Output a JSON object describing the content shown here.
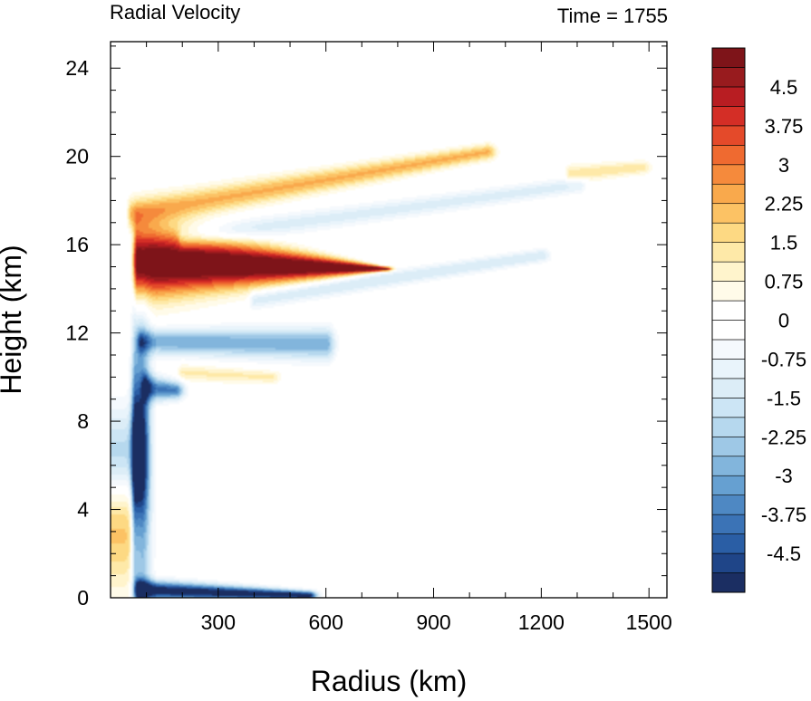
{
  "chart_data": {
    "type": "heatmap",
    "title": "Radial Velocity",
    "subtitle": "Time = 1755",
    "xlabel": "Radius (km)",
    "ylabel": "Height (km)",
    "xlim": [
      0,
      1550
    ],
    "ylim": [
      0,
      25.2
    ],
    "xticks": [
      300,
      600,
      900,
      1200,
      1500
    ],
    "yticks": [
      0,
      4,
      8,
      12,
      16,
      20,
      24
    ],
    "colorbar": {
      "min": -5.25,
      "max": 5.25,
      "step": 0.375,
      "labels": [
        "4.5",
        "3.75",
        "3",
        "2.25",
        "1.5",
        "0.75",
        "0",
        "-0.75",
        "-1.5",
        "-2.25",
        "-3",
        "-3.75",
        "-4.5"
      ],
      "label_values": [
        4.5,
        3.75,
        3,
        2.25,
        1.5,
        0.75,
        0,
        -0.75,
        -1.5,
        -2.25,
        -3,
        -3.75,
        -4.5
      ],
      "colors": [
        "#1b2e62",
        "#1f4588",
        "#2a5ea5",
        "#3b73b6",
        "#4e88c3",
        "#66a0d1",
        "#82b5dc",
        "#9ec8e6",
        "#b6d8ee",
        "#cce5f5",
        "#dcedf7",
        "#e9f4fb",
        "#f5f9fd",
        "#ffffff",
        "#ffffff",
        "#fffbe9",
        "#fff4cc",
        "#fee9a8",
        "#fdd983",
        "#fcc264",
        "#f9a94c",
        "#f58a3c",
        "#ef6a30",
        "#e44a2a",
        "#d42e26",
        "#b81d22",
        "#981b1e",
        "#7e1419"
      ]
    },
    "features": [
      {
        "name": "core outflow jet",
        "value": 6.0,
        "r_range": [
          75,
          760
        ],
        "z_center": [
          15.2,
          14.9
        ],
        "z_halfwidth": [
          1.6,
          0.1
        ]
      },
      {
        "name": "inflow layer below outflow",
        "value": -3.0,
        "r_range": [
          85,
          600
        ],
        "z_center": [
          11.6,
          11.5
        ],
        "z_halfwidth": [
          0.55,
          0.7
        ]
      },
      {
        "name": "upper outflow band",
        "value": 2.3,
        "r_range": [
          60,
          1050
        ],
        "z_center": [
          17.4,
          20.2
        ],
        "z_halfwidth": [
          0.7,
          0.35
        ]
      },
      {
        "name": "upper inflow band",
        "value": -1.3,
        "r_range": [
          200,
          1300
        ],
        "z_center": [
          16.3,
          18.7
        ],
        "z_halfwidth": [
          0.5,
          0.35
        ]
      },
      {
        "name": "lower upper-level inflow band",
        "value": -1.5,
        "r_range": [
          400,
          1200
        ],
        "z_center": [
          13.5,
          15.5
        ],
        "z_halfwidth": [
          0.4,
          0.3
        ]
      },
      {
        "name": "surface inflow layer",
        "value": -5.5,
        "r_range": [
          80,
          550
        ],
        "z_center": [
          0.35,
          0.1
        ],
        "z_halfwidth": [
          0.45,
          0.2
        ]
      },
      {
        "name": "eyewall downdraft column",
        "value": -6.0,
        "r_range": [
          70,
          85
        ],
        "z_center": [
          5.5,
          5.5
        ],
        "z_halfwidth": [
          6.0,
          6.0
        ]
      },
      {
        "name": "mid-level inflow",
        "value": -3.8,
        "r_range": [
          100,
          180
        ],
        "z_center": [
          9.5,
          9.4
        ],
        "z_halfwidth": [
          0.6,
          0.4
        ]
      },
      {
        "name": "mid-level outflow",
        "value": 1.2,
        "r_range": [
          200,
          450
        ],
        "z_center": [
          10.2,
          10.0
        ],
        "z_halfwidth": [
          0.4,
          0.3
        ]
      },
      {
        "name": "outer upper outflow",
        "value": 1.4,
        "r_range": [
          1280,
          1480
        ],
        "z_center": [
          19.2,
          19.5
        ],
        "z_halfwidth": [
          0.4,
          0.3
        ]
      },
      {
        "name": "inner outflow near axis",
        "value": 2.0,
        "r_range": [
          0,
          80
        ],
        "z_center": [
          3.0,
          3.0
        ],
        "z_halfwidth": [
          2.5,
          2.5
        ]
      },
      {
        "name": "inner inflow near axis",
        "value": -2.2,
        "r_range": [
          0,
          70
        ],
        "z_center": [
          6.5,
          6.5
        ],
        "z_halfwidth": [
          2.0,
          2.0
        ]
      }
    ]
  }
}
